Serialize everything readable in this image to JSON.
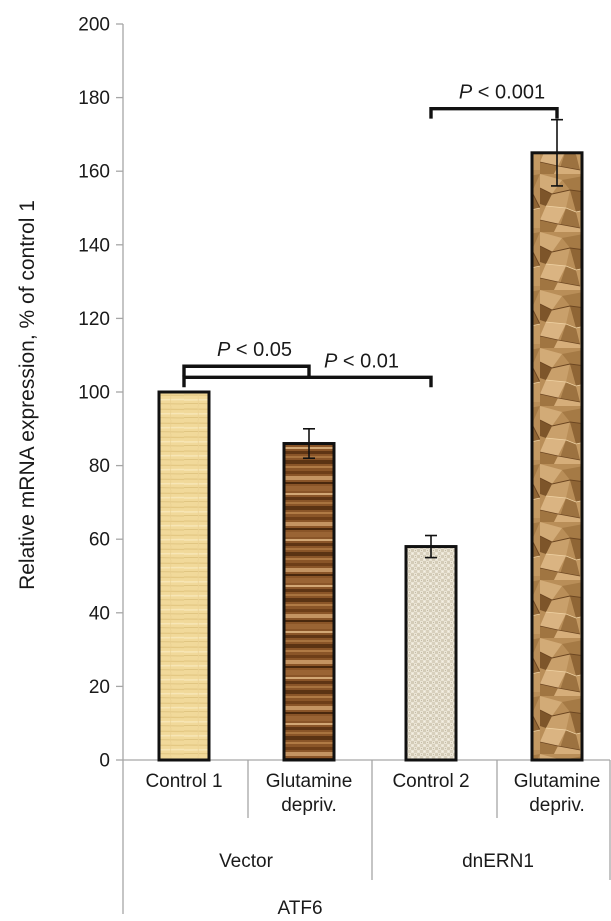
{
  "chart_data": {
    "type": "bar",
    "ylabel": "Relative mRNA expression, % of control 1",
    "ylim": [
      0,
      200
    ],
    "yticks": [
      0,
      20,
      40,
      60,
      80,
      100,
      120,
      140,
      160,
      180,
      200
    ],
    "grid": false,
    "categories": [
      {
        "lines": [
          "Control 1"
        ],
        "group": "Vector"
      },
      {
        "lines": [
          "Glutamine",
          "depriv."
        ],
        "group": "Vector"
      },
      {
        "lines": [
          "Control 2"
        ],
        "group": "dnERN1"
      },
      {
        "lines": [
          "Glutamine",
          "depriv."
        ],
        "group": "dnERN1"
      }
    ],
    "groups": [
      "Vector",
      "dnERN1"
    ],
    "gene_label": "ATF6",
    "values": [
      100,
      86,
      58,
      165
    ],
    "errors": [
      0,
      4,
      3,
      9
    ],
    "bar_textures": [
      "straw",
      "dark-wood",
      "linen",
      "crumpled-paper"
    ],
    "significance": [
      {
        "from": 0,
        "to": 1,
        "label": "P < 0.05",
        "y": 107
      },
      {
        "from": 0,
        "to": 2,
        "label": "P < 0.01",
        "y": 104
      },
      {
        "from": 2,
        "to": 3,
        "label": "P < 0.001",
        "y": 177
      }
    ]
  }
}
